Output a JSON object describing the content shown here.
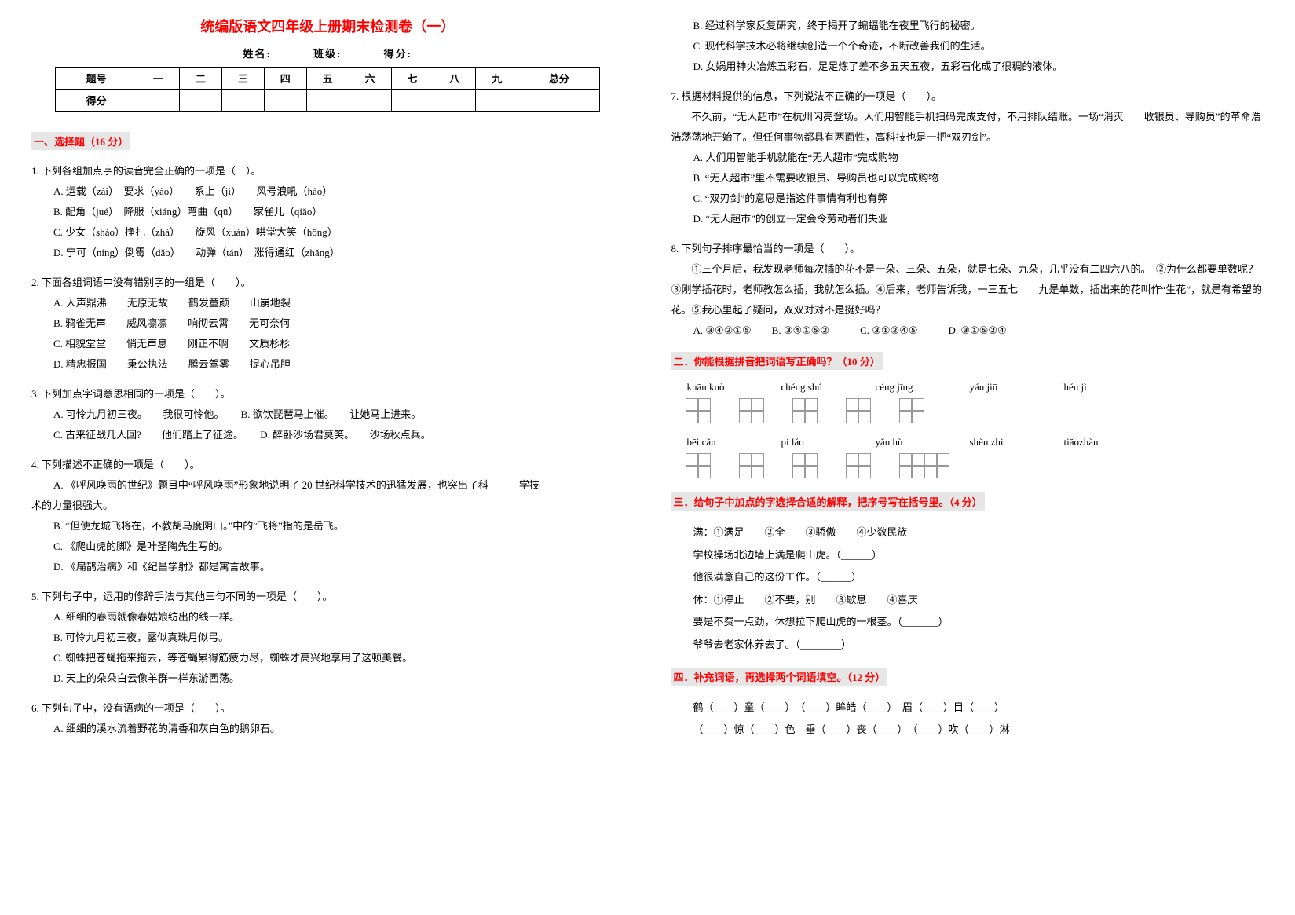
{
  "title": "统编版语文四年级上册期末检测卷（一）",
  "meta": {
    "name": "姓名:",
    "class": "班级:",
    "score": "得分:"
  },
  "score_table": {
    "headers": [
      "题号",
      "一",
      "二",
      "三",
      "四",
      "五",
      "六",
      "七",
      "八",
      "九",
      "总分"
    ],
    "row_label": "得分"
  },
  "sect1": "一、选择题（16 分）",
  "q1": {
    "stem": "1. 下列各组加点字的读音完全正确的一项是（　）。",
    "opts": [
      "A. 运载（zài）　要求（yào）　　系上（jì）　　风号浪吼（hào）",
      "B. 配角（jué）　降服（xiáng）弯曲（qū）　　家雀儿（qiǎo）",
      "C. 少女（shào）挣扎（zhá）　　旋风（xuán）哄堂大笑（hōng）",
      "D. 宁可（níng）倒霉（dǎo）　　动弹（tán）　涨得通红（zhǎng）"
    ]
  },
  "q2": {
    "stem": "2. 下面各组词语中没有错别字的一组是（　　）。",
    "opts": [
      "A. 人声鼎沸　　无原无故　　鹤发童颜　　山崩地裂",
      "B. 鸦雀无声　　威风凛凛　　响彻云霄　　无可奈何",
      "C. 相貌堂堂　　悄无声息　　刚正不啊　　文质杉杉",
      "D. 精忠报国　　秉公执法　　腾云驾雾　　提心吊胆"
    ]
  },
  "q3": {
    "stem": "3. 下列加点字词意思相同的一项是（　　）。",
    "opts": [
      [
        "A. 可怜九月初三夜。　　我很可怜他。",
        "B. 欲饮琵琶马上催。　　让她马上进来。"
      ],
      [
        "C. 古来征战几人回?　　他们踏上了征途。",
        "D. 醉卧沙场君莫笑。　　沙场秋点兵。"
      ]
    ]
  },
  "q4": {
    "stem": "4. 下列描述不正确的一项是（　　）。",
    "opts": [
      "A. 《呼风唤雨的世纪》题目中“呼风唤雨”形象地说明了 20 世纪科学技术的迅猛发展，也突出了科　　　学技",
      "术的力量很强大。",
      "B. “但使龙城飞将在，不教胡马度阴山。”中的“飞将”指的是岳飞。",
      "C. 《爬山虎的脚》是叶圣陶先生写的。",
      "D. 《扁鹊治病》和《纪昌学射》都是寓言故事。"
    ]
  },
  "q5": {
    "stem": "5. 下列句子中，运用的修辞手法与其他三句不同的一项是（　　）。",
    "opts": [
      "A. 细细的春雨就像春姑娘纺出的线一样。",
      "B. 可怜九月初三夜，露似真珠月似弓。",
      "C. 蜘蛛把苍蝇拖来拖去，等苍蝇累得筋疲力尽，蜘蛛才高兴地享用了这顿美餐。",
      "D. 天上的朵朵白云像羊群一样东游西荡。"
    ]
  },
  "q6": {
    "stem": "6. 下列句子中，没有语病的一项是（　　）。",
    "opts_left": [
      "A. 细细的溪水流着野花的清香和灰白色的鹅卵石。"
    ],
    "opts_right": [
      "B. 经过科学家反复研究，终于揭开了蝙蝠能在夜里飞行的秘密。",
      "C. 现代科学技术必将继续创造一个个奇迹，不断改善我们的生活。",
      "D. 女娲用神火冶炼五彩石，足足炼了差不多五天五夜，五彩石化成了很稠的液体。"
    ]
  },
  "q7": {
    "stem": "7. 根据材料提供的信息，下列说法不正确的一项是（　　）。",
    "passage": "不久前，“无人超市”在杭州闪亮登场。人们用智能手机扫码完成支付，不用排队结账。一场“消灭　　收银员、导购员”的革命浩浩荡荡地开始了。但任何事物都具有两面性，高科技也是一把“双刃剑”。",
    "opts": [
      "A. 人们用智能手机就能在“无人超市”完成购物",
      "B. “无人超市”里不需要收银员、导购员也可以完成购物",
      "C. “双刃剑”的意思是指这件事情有利也有弊",
      "D. “无人超市”的创立一定会令劳动者们失业"
    ]
  },
  "q8": {
    "stem": "8. 下列句子排序最恰当的一项是（　　）。",
    "passage": "①三个月后，我发现老师每次插的花不是一朵、三朵、五朵，就是七朵、九朵，几乎没有二四六八的。　②为什么都要单数呢？③刚学插花时，老师教怎么插，我就怎么插。④后来，老师告诉我，一三五七　　九是单数，插出来的花叫作“生花”，就是有希望的花。⑤我心里起了疑问，双双对对不是挺好吗？",
    "opts": "A. ③④②①⑤　　B. ③④①⑤②　　　C. ③①②④⑤　　　D. ③①⑤②④"
  },
  "sect2": "二．你能根据拼音把词语写正确吗？（10 分）",
  "pinyin": {
    "row1": [
      "kuān kuò",
      "chéng shú",
      "céng jīng",
      "yán jiū",
      "hén jì"
    ],
    "row2": [
      "bēi cǎn",
      "pí láo",
      "yǎn hù",
      "shèn zhì",
      "tiǎozhàn"
    ],
    "widths": [
      2,
      2,
      2,
      2,
      2
    ],
    "widths2": [
      2,
      2,
      2,
      2,
      4
    ]
  },
  "sect3": "三．给句子中加点的字选择合适的解释，把序号写在括号里。（4 分）",
  "q3b": {
    "man": "满：①满足　　②全　　③骄傲　　④少数民族",
    "man1": "学校操场北边墙上满是爬山虎。（______）",
    "man2": "他很满意自己的这份工作。（______）",
    "xiu": "休：①停止　　②不要，别　　③歇息　　④喜庆",
    "xiu1": "要是不费一点劲，休想拉下爬山虎的一根茎。（_______）",
    "xiu2": "爷爷去老家休养去了。（________）"
  },
  "sect4": "四．补充词语，再选择两个词语填空。（12 分）",
  "q4b": {
    "line1": "鹤（____）童（____）　（____）眸皓（____）　眉（____）目（____）",
    "line2": "（____）惊（____）色　垂（____）丧（____）　（____）吹（____）淋"
  },
  "colors": {
    "accent": "#ff0000",
    "section_bg": "#e6e6e6",
    "grid_border": "#999999",
    "text": "#000000",
    "bg": "#ffffff"
  },
  "typography": {
    "body_fontsize": 13,
    "title_fontsize": 18,
    "line_height": 2.0
  }
}
